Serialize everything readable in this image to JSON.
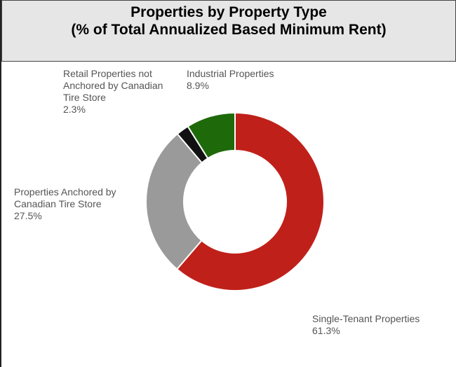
{
  "chart_data": {
    "type": "donut",
    "title": "Properties by Property Type",
    "subtitle": "(% of Total Annualized Based Minimum Rent)",
    "categories": [
      "Single-Tenant Properties",
      "Properties Anchored by Canadian Tire Store",
      "Retail Properties not Anchored by Canadian Tire Store",
      "Industrial Properties"
    ],
    "values": [
      61.3,
      27.5,
      2.3,
      8.9
    ],
    "value_labels": [
      "61.3%",
      "27.5%",
      "2.3%",
      "8.9%"
    ],
    "colors": [
      "#c0201a",
      "#9a9a9a",
      "#111111",
      "#1e6a0b"
    ]
  }
}
